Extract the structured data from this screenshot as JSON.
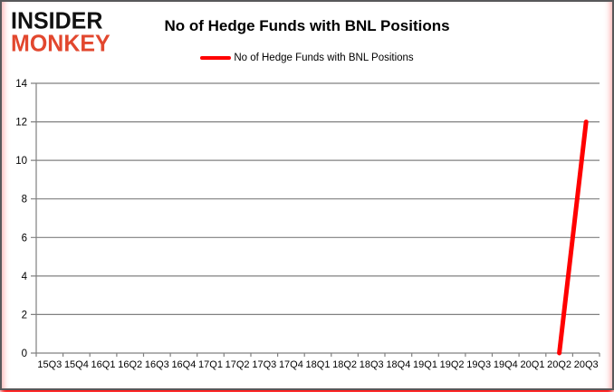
{
  "logo": {
    "line1": "INSIDER",
    "line2": "MONKEY",
    "color": "#e2472e"
  },
  "title": "No of Hedge Funds with BNL Positions",
  "legend": {
    "label": "No of Hedge Funds with BNL Positions",
    "swatch_color": "#ff0000"
  },
  "colors": {
    "line": "#ff0000",
    "grid": "#808080",
    "axis": "#808080",
    "tick_text": "#000000",
    "border": "#58585a",
    "glow": "#ff0000"
  },
  "chart_data": {
    "type": "line",
    "title": "No of Hedge Funds with BNL Positions",
    "xlabel": "",
    "ylabel": "",
    "categories": [
      "15Q3",
      "15Q4",
      "16Q1",
      "16Q2",
      "16Q3",
      "16Q4",
      "17Q1",
      "17Q2",
      "17Q3",
      "17Q4",
      "18Q1",
      "18Q2",
      "18Q3",
      "18Q4",
      "19Q1",
      "19Q2",
      "19Q3",
      "19Q4",
      "20Q1",
      "20Q2",
      "20Q3"
    ],
    "series": [
      {
        "name": "No of Hedge Funds with BNL Positions",
        "values": [
          null,
          null,
          null,
          null,
          null,
          null,
          null,
          null,
          null,
          null,
          null,
          null,
          null,
          null,
          null,
          null,
          null,
          null,
          null,
          0,
          12
        ]
      }
    ],
    "ylim": [
      0,
      14
    ],
    "yticks": [
      0,
      2,
      4,
      6,
      8,
      10,
      12,
      14
    ],
    "grid": true,
    "legend_position": "top"
  }
}
